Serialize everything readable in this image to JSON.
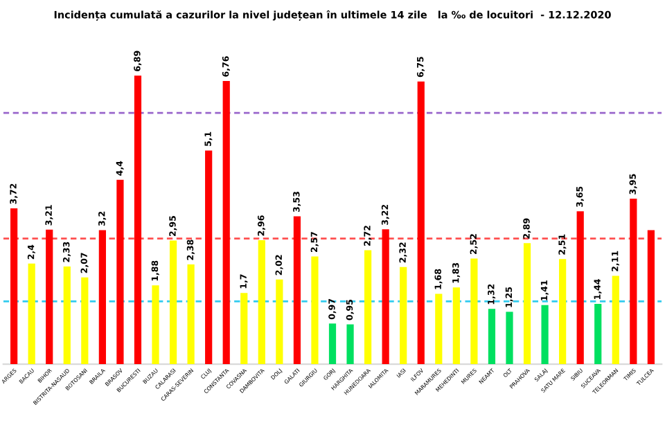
{
  "chart_data": {
    "type": "bar",
    "title": "Incidența cumulată a cazurilor la nivel județean în ultimele 14 zile   la ‰ de locuitori  - 12.12.2020",
    "categories": [
      "ARGES",
      "BACAU",
      "BIHOR",
      "BISTRITA-NASAUD",
      "BOTOSANI",
      "BRAILA",
      "BRASOV",
      "BUCURESTI",
      "BUZAU",
      "CALARASI",
      "CARAS-SEVERIN",
      "CLUJ",
      "CONSTANTA",
      "COVASNA",
      "DAMBOVITA",
      "DOLJ",
      "GALATI",
      "GIURGIU",
      "GORJ",
      "HARGHITA",
      "HUNEDOARA",
      "IALOMITA",
      "IASI",
      "ILFOV",
      "MARAMURES",
      "MEHEDINTI",
      "MURES",
      "NEAMT",
      "OLT",
      "PRAHOVA",
      "SALAJ",
      "SATU MARE",
      "SIBIU",
      "SUCEAVA",
      "TELEORMAN",
      "TIMIS",
      "TULCEA"
    ],
    "values": [
      3.72,
      2.4,
      3.21,
      2.33,
      2.07,
      3.2,
      4.4,
      6.89,
      1.88,
      2.95,
      2.38,
      5.1,
      6.76,
      1.7,
      2.96,
      2.02,
      3.53,
      2.57,
      0.97,
      0.95,
      2.72,
      3.22,
      2.32,
      6.75,
      1.68,
      1.83,
      2.52,
      1.32,
      1.25,
      2.89,
      1.41,
      2.51,
      3.65,
      1.44,
      2.11,
      3.95,
      3.2
    ],
    "value_labels": [
      "3,72",
      "2,4",
      "3,21",
      "2,33",
      "2,07",
      "3,2",
      "4,4",
      "6,89",
      "1,88",
      "2,95",
      "2,38",
      "5,1",
      "6,76",
      "1,7",
      "2,96",
      "2,02",
      "3,53",
      "2,57",
      "0,97",
      "0,95",
      "2,72",
      "3,22",
      "2,32",
      "6,75",
      "1,68",
      "1,83",
      "2,52",
      "1,32",
      "1,25",
      "2,89",
      "1,41",
      "2,51",
      "3,65",
      "1,44",
      "2,11",
      "3,95",
      null
    ],
    "colors": [
      "#ff0000",
      "#ffff00",
      "#ff0000",
      "#ffff00",
      "#ffff00",
      "#ff0000",
      "#ff0000",
      "#ff0000",
      "#ffff00",
      "#ffff00",
      "#ffff00",
      "#ff0000",
      "#ff0000",
      "#ffff00",
      "#ffff00",
      "#ffff00",
      "#ff0000",
      "#ffff00",
      "#00e060",
      "#00e060",
      "#ffff00",
      "#ff0000",
      "#ffff00",
      "#ff0000",
      "#ffff00",
      "#ffff00",
      "#ffff00",
      "#00e060",
      "#00e060",
      "#ffff00",
      "#00e060",
      "#ffff00",
      "#ff0000",
      "#00e060",
      "#ffff00",
      "#ff0000",
      "#ff0000"
    ],
    "ref_lines": [
      {
        "axis": "y",
        "value": 6,
        "color": "#9966cc",
        "line_style": "dashed"
      },
      {
        "axis": "y",
        "value": 3,
        "color": "#ff5050",
        "line_style": "dashed"
      },
      {
        "axis": "y",
        "value": 1.5,
        "color": "#33ccee",
        "line_style": "dashed"
      }
    ],
    "grid": false,
    "legend": false
  }
}
